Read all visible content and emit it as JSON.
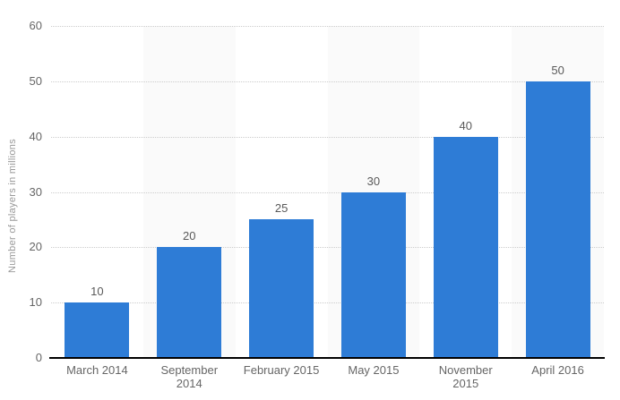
{
  "chart_data": {
    "type": "bar",
    "title": "",
    "categories": [
      "March 2014",
      "September\n2014",
      "February 2015",
      "May 2015",
      "November\n2015",
      "April 2016"
    ],
    "values": [
      10,
      20,
      25,
      30,
      40,
      50
    ],
    "xlabel": "",
    "ylabel": "Number of players in millions",
    "ylim": [
      0,
      60
    ],
    "yticks": [
      0,
      10,
      20,
      30,
      40,
      50,
      60
    ],
    "grid": "horizontal-dotted",
    "legend_position": "none",
    "colors": {
      "bar": "#2e7cd6",
      "column_band": "#fafafa",
      "gridline": "#cccccc",
      "axis_line": "#000000",
      "tick_label": "#666666",
      "value_label": "#595959",
      "axis_title": "#999999"
    }
  }
}
